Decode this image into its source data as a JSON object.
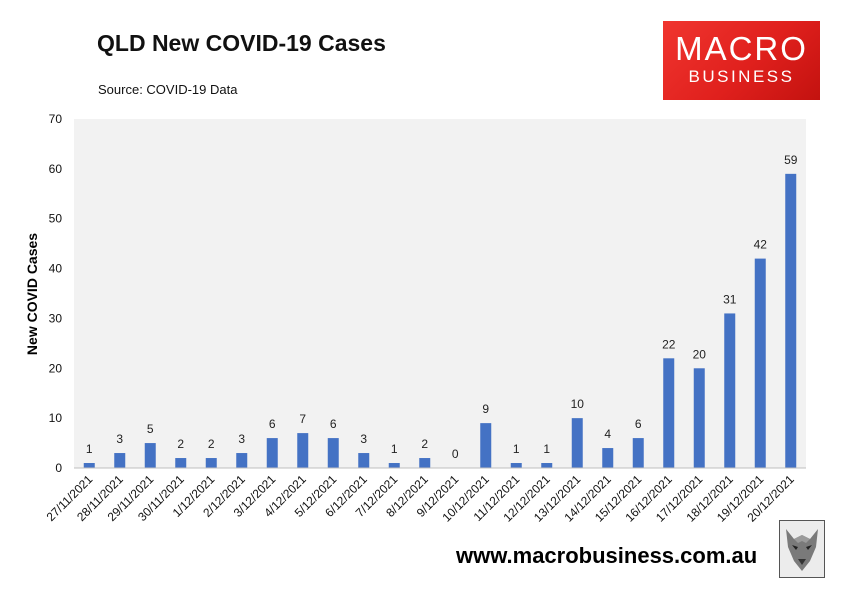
{
  "header": {
    "title": "QLD New COVID-19 Cases",
    "subtitle": "Source: COVID-19 Data"
  },
  "logo": {
    "line1": "MACRO",
    "line2": "BUSINESS",
    "color": "#e5231f"
  },
  "footer": {
    "website": "www.macrobusiness.com.au"
  },
  "chart_data": {
    "type": "bar",
    "title": "QLD New COVID-19 Cases",
    "subtitle": "Source: COVID-19 Data",
    "xlabel": "",
    "ylabel": "New COVID Cases",
    "ylim": [
      0,
      70
    ],
    "yticks": [
      0,
      10,
      20,
      30,
      40,
      50,
      60,
      70
    ],
    "grid": false,
    "legend": "none",
    "bar_color": "#4472c4",
    "plot_background": "#f2f2f2",
    "categories": [
      "27/11/2021",
      "28/11/2021",
      "29/11/2021",
      "30/11/2021",
      "1/12/2021",
      "2/12/2021",
      "3/12/2021",
      "4/12/2021",
      "5/12/2021",
      "6/12/2021",
      "7/12/2021",
      "8/12/2021",
      "9/12/2021",
      "10/12/2021",
      "11/12/2021",
      "12/12/2021",
      "13/12/2021",
      "14/12/2021",
      "15/12/2021",
      "16/12/2021",
      "17/12/2021",
      "18/12/2021",
      "19/12/2021",
      "20/12/2021"
    ],
    "values": [
      1,
      3,
      5,
      2,
      2,
      3,
      6,
      7,
      6,
      3,
      1,
      2,
      0,
      9,
      1,
      1,
      10,
      4,
      6,
      22,
      20,
      31,
      42,
      59
    ]
  }
}
